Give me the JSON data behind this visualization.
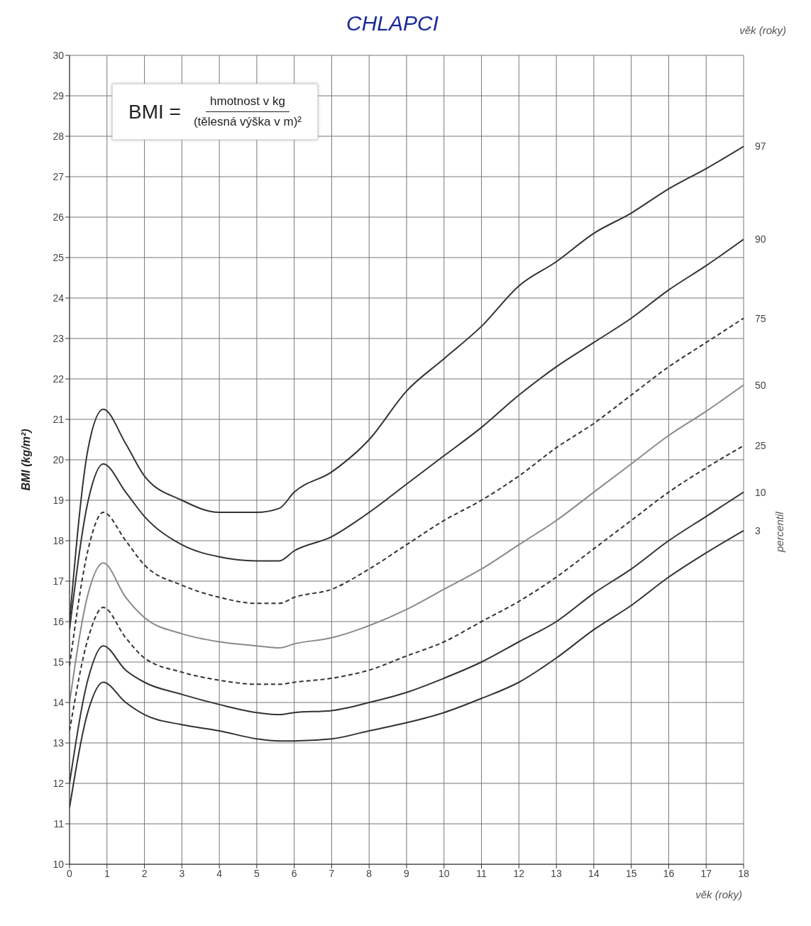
{
  "chart_data": {
    "type": "line",
    "title": "CHLAPCI",
    "xlabel": "věk (roky)",
    "x2label": "věk (roky)",
    "ylabel": "BMI (kg/m²)",
    "y2label": "percentil",
    "annotations": [
      "BMI =",
      "hmotnost v kg",
      "(tělesná výška v m)²"
    ],
    "x": [
      0,
      0.5,
      0.9,
      1.5,
      2,
      3,
      4,
      5,
      5.6,
      6,
      7,
      8,
      9,
      10,
      11,
      12,
      13,
      14,
      15,
      16,
      17,
      18
    ],
    "series": [
      {
        "name": "97",
        "color": "#333333",
        "line_style": "solid",
        "values": [
          16.0,
          20.3,
          21.25,
          20.4,
          19.6,
          19.0,
          18.7,
          18.7,
          18.8,
          19.2,
          19.7,
          20.5,
          21.7,
          22.5,
          23.3,
          24.3,
          24.9,
          25.6,
          26.1,
          26.7,
          27.2,
          27.75
        ]
      },
      {
        "name": "90",
        "color": "#333333",
        "line_style": "solid",
        "values": [
          15.8,
          19.0,
          19.9,
          19.2,
          18.6,
          17.9,
          17.6,
          17.5,
          17.5,
          17.75,
          18.1,
          18.7,
          19.4,
          20.1,
          20.8,
          21.6,
          22.3,
          22.9,
          23.5,
          24.2,
          24.8,
          25.45
        ]
      },
      {
        "name": "75",
        "color": "#333333",
        "line_style": "dashed",
        "values": [
          14.9,
          17.8,
          18.7,
          18.0,
          17.4,
          16.9,
          16.6,
          16.45,
          16.45,
          16.6,
          16.8,
          17.3,
          17.9,
          18.5,
          19.0,
          19.6,
          20.3,
          20.9,
          21.6,
          22.3,
          22.9,
          23.5
        ]
      },
      {
        "name": "50",
        "color": "#8a8a8a",
        "line_style": "solid",
        "values": [
          14.0,
          16.7,
          17.45,
          16.6,
          16.1,
          15.7,
          15.5,
          15.4,
          15.35,
          15.45,
          15.6,
          15.9,
          16.3,
          16.8,
          17.3,
          17.9,
          18.5,
          19.2,
          19.9,
          20.6,
          21.2,
          21.85
        ]
      },
      {
        "name": "25",
        "color": "#333333",
        "line_style": "dashed",
        "values": [
          13.3,
          15.6,
          16.35,
          15.6,
          15.1,
          14.75,
          14.55,
          14.45,
          14.45,
          14.5,
          14.6,
          14.8,
          15.15,
          15.5,
          16.0,
          16.5,
          17.1,
          17.8,
          18.5,
          19.2,
          19.8,
          20.35
        ]
      },
      {
        "name": "10",
        "color": "#333333",
        "line_style": "solid",
        "values": [
          12.0,
          14.6,
          15.4,
          14.8,
          14.5,
          14.2,
          13.95,
          13.75,
          13.7,
          13.75,
          13.8,
          14.0,
          14.25,
          14.6,
          15.0,
          15.5,
          16.0,
          16.7,
          17.3,
          18.0,
          18.6,
          19.2
        ]
      },
      {
        "name": "3",
        "color": "#333333",
        "line_style": "solid",
        "values": [
          11.4,
          13.8,
          14.5,
          14.0,
          13.7,
          13.45,
          13.3,
          13.1,
          13.05,
          13.05,
          13.1,
          13.3,
          13.5,
          13.75,
          14.1,
          14.5,
          15.1,
          15.8,
          16.4,
          17.1,
          17.7,
          18.25
        ]
      }
    ],
    "xlim": [
      0,
      18
    ],
    "xticks": [
      0,
      1,
      2,
      3,
      4,
      5,
      6,
      7,
      8,
      9,
      10,
      11,
      12,
      13,
      14,
      15,
      16,
      17,
      18
    ],
    "ylim": [
      10,
      30
    ],
    "yticks": [
      10,
      11,
      12,
      13,
      14,
      15,
      16,
      17,
      18,
      19,
      20,
      21,
      22,
      23,
      24,
      25,
      26,
      27,
      28,
      29,
      30
    ],
    "grid": true,
    "legend": false
  }
}
